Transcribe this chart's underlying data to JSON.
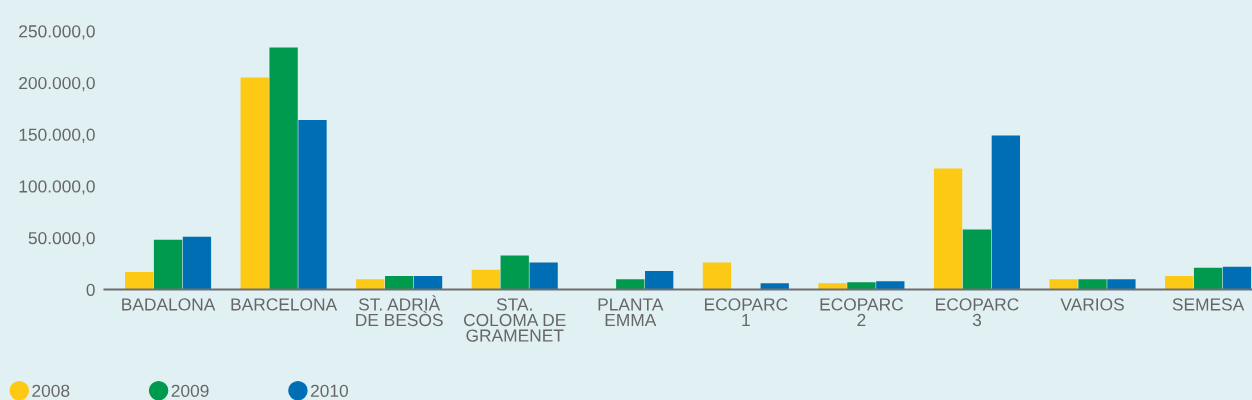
{
  "chart_data": {
    "type": "bar",
    "categories": [
      "BADALONA",
      "BARCELONA",
      "ST. ADRIÀ\nDE BESÒS",
      "STA.\nCOLOMA DE\nGRAMENET",
      "PLANTA\nEMMA",
      "ECOPARC\n1",
      "ECOPARC\n2",
      "ECOPARC\n3",
      "VARIOS",
      "SEMESA"
    ],
    "series": [
      {
        "name": "2008",
        "color": "#fcc914",
        "values": [
          17000,
          205000,
          10000,
          19000,
          null,
          26000,
          6000,
          117000,
          10000,
          13000
        ]
      },
      {
        "name": "2009",
        "color": "#009a4e",
        "values": [
          48000,
          234000,
          13000,
          33000,
          10000,
          null,
          7000,
          58000,
          10000,
          21000
        ]
      },
      {
        "name": "2010",
        "color": "#006eb5",
        "values": [
          51000,
          164000,
          13000,
          26000,
          18000,
          6000,
          8000,
          149000,
          10000,
          22000
        ]
      }
    ],
    "ylim": [
      0,
      280000
    ],
    "yticks": [
      {
        "value": 0,
        "label": "0"
      },
      {
        "value": 50000,
        "label": "50.000,0"
      },
      {
        "value": 100000,
        "label": "100.000,0"
      },
      {
        "value": 150000,
        "label": "150.000,0"
      },
      {
        "value": 200000,
        "label": "200.000,0"
      },
      {
        "value": 250000,
        "label": "250.000,0"
      }
    ],
    "grid": false,
    "legend": "bottom left"
  }
}
